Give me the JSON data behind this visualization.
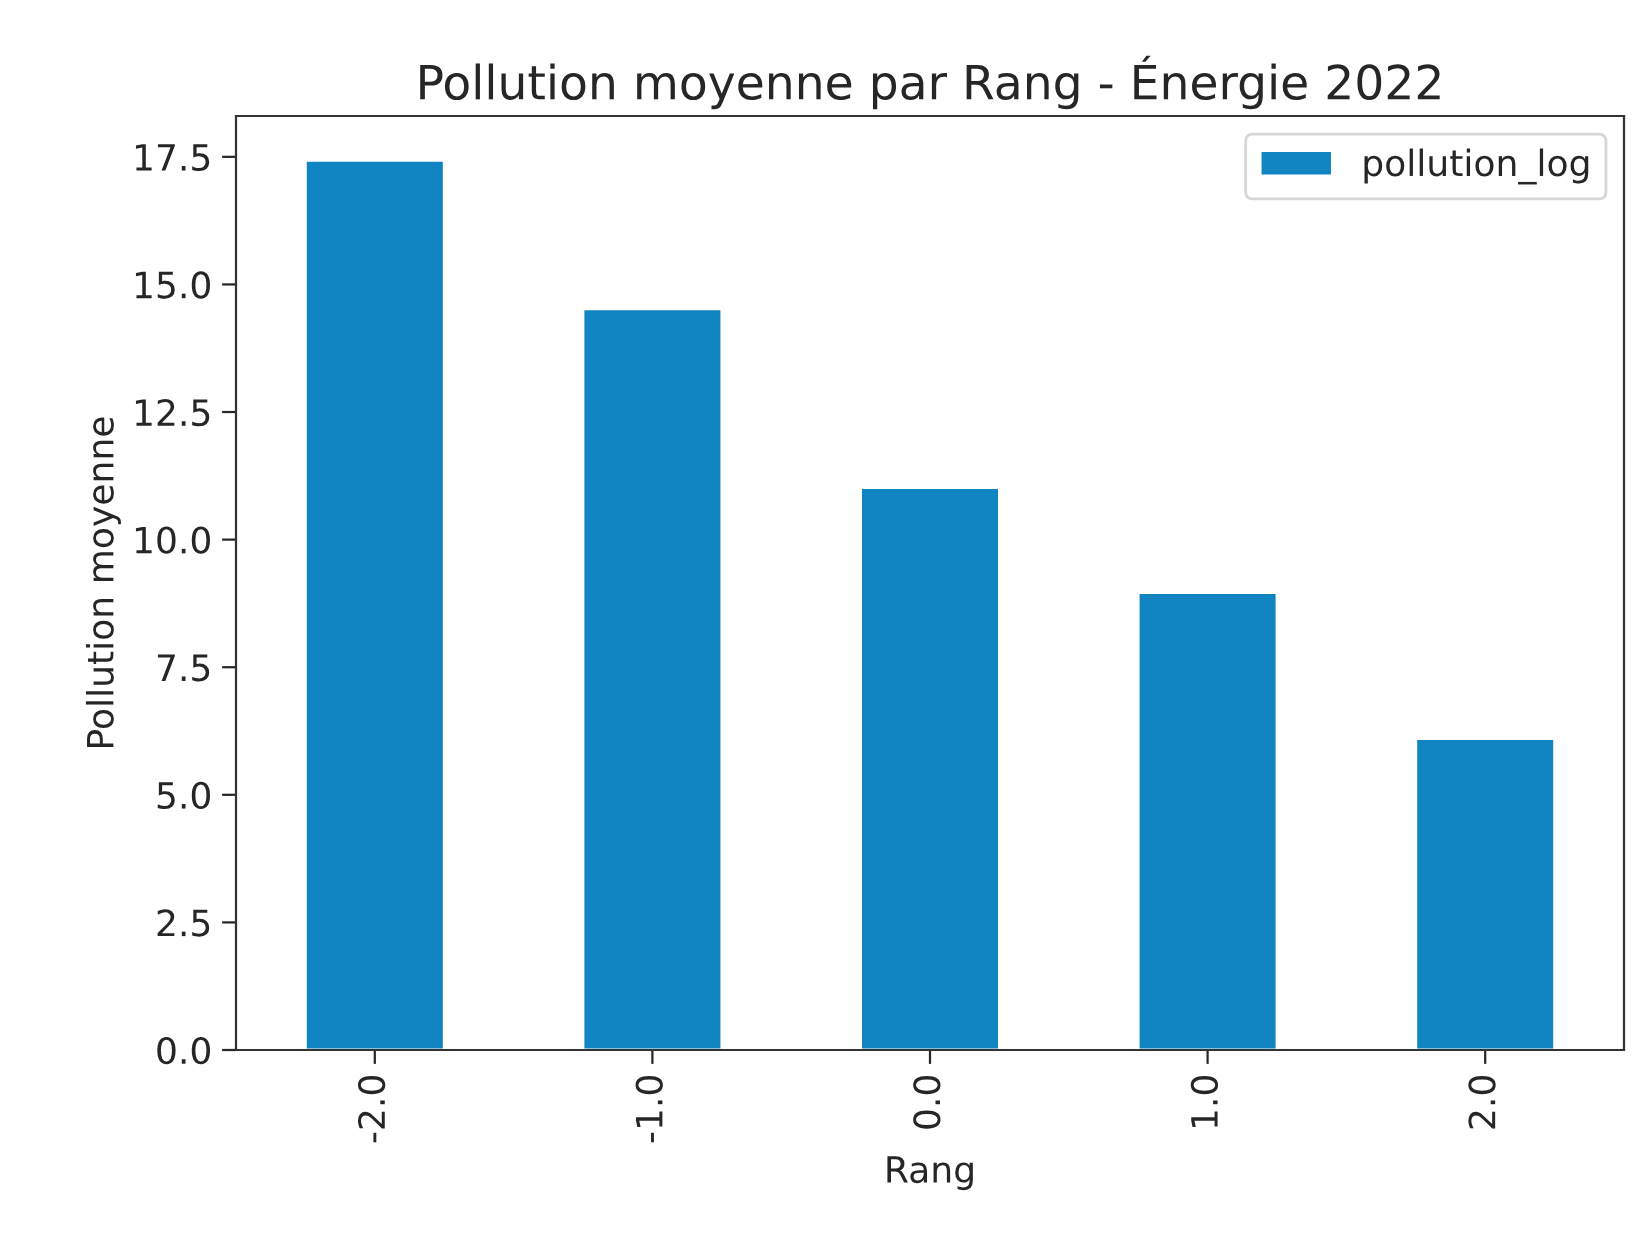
{
  "chart_data": {
    "type": "bar",
    "title": "Pollution moyenne par Rang - Énergie 2022",
    "xlabel": "Rang",
    "ylabel": "Pollution moyenne",
    "categories": [
      "-2.0",
      "-1.0",
      "0.0",
      "1.0",
      "2.0"
    ],
    "series": [
      {
        "name": "pollution_log",
        "color": "#1185c1",
        "values": [
          17.43,
          14.52,
          11.02,
          8.96,
          6.1
        ]
      }
    ],
    "ylim": [
      0,
      18.3
    ],
    "yticks": [
      {
        "value": 0,
        "label": "0.0"
      },
      {
        "value": 2.5,
        "label": "2.5"
      },
      {
        "value": 5,
        "label": "5.0"
      },
      {
        "value": 7.5,
        "label": "7.5"
      },
      {
        "value": 10,
        "label": "10.0"
      },
      {
        "value": 12.5,
        "label": "12.5"
      },
      {
        "value": 15,
        "label": "15.0"
      },
      {
        "value": 17.5,
        "label": "17.5"
      }
    ],
    "legend": "top right",
    "grid": false
  }
}
